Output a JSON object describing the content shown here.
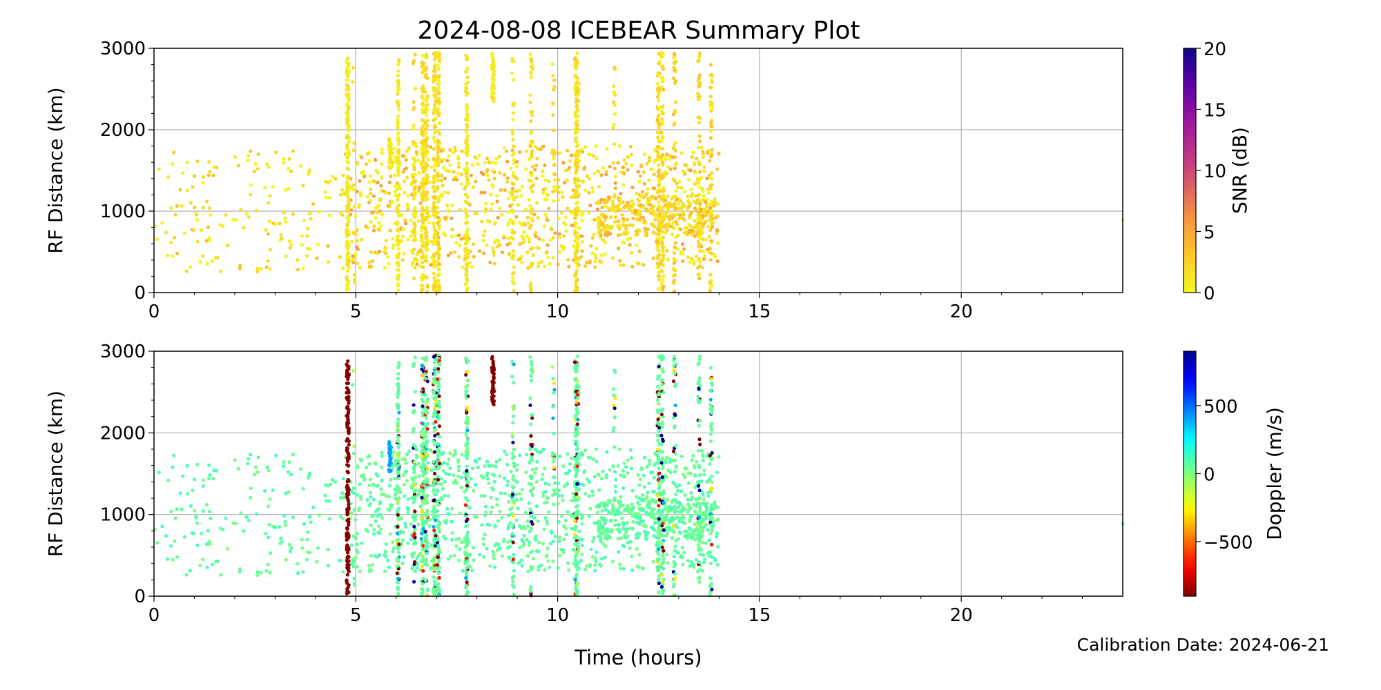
{
  "title": "2024-08-08 ICEBEAR Summary Plot",
  "calibration": "Calibration Date: 2024-06-21",
  "chart_data": [
    {
      "type": "scatter",
      "panel": "top",
      "ylabel": "RF Distance (km)",
      "xlabel": "Time (hours)",
      "xlim": [
        0,
        24
      ],
      "ylim": [
        0,
        3000
      ],
      "xticks": [
        0,
        5,
        10,
        15,
        20
      ],
      "yticks": [
        0,
        1000,
        2000,
        3000
      ],
      "grid": true,
      "color_by": "snr",
      "colorbar": {
        "label": "SNR (dB)",
        "range": [
          0,
          20
        ],
        "ticks": [
          0,
          5,
          10,
          15,
          20
        ],
        "colormap": "plasma_r"
      }
    },
    {
      "type": "scatter",
      "panel": "bottom",
      "ylabel": "RF Distance (km)",
      "xlabel": "Time (hours)",
      "xlim": [
        0,
        24
      ],
      "ylim": [
        0,
        3000
      ],
      "xticks": [
        0,
        5,
        10,
        15,
        20
      ],
      "yticks": [
        0,
        1000,
        2000,
        3000
      ],
      "grid": true,
      "color_by": "doppler",
      "colorbar": {
        "label": "Doppler (m/s)",
        "range": [
          -900,
          900
        ],
        "ticks": [
          -500,
          0,
          500
        ],
        "tick_labels": [
          "−500",
          "0",
          "500"
        ],
        "colormap": "jet_r"
      }
    }
  ],
  "data_description": {
    "units": {
      "time": "hours",
      "range": "km",
      "snr": "dB",
      "doppler": "m/s"
    },
    "background_clusters": [
      {
        "t": [
          0,
          4.8
        ],
        "r": [
          250,
          1750
        ],
        "count": 170,
        "snr": [
          0,
          4
        ],
        "doppler": [
          0,
          120
        ]
      },
      {
        "t": [
          4.8,
          14
        ],
        "r": [
          300,
          1800
        ],
        "count": 950,
        "snr": [
          0,
          6
        ],
        "doppler": [
          0,
          120
        ]
      },
      {
        "t": [
          11,
          14
        ],
        "r": [
          700,
          1200
        ],
        "count": 300,
        "snr": [
          1,
          5
        ],
        "doppler": [
          0,
          120
        ]
      }
    ],
    "streaks": [
      {
        "t": 4.8,
        "r": [
          0,
          2950
        ],
        "count": 160,
        "snr": [
          0,
          2
        ],
        "doppler": "-900"
      },
      {
        "t": 4.95,
        "r": [
          0,
          2900
        ],
        "count": 12,
        "snr": [
          0,
          2
        ],
        "doppler": "mixed"
      },
      {
        "t": 5.85,
        "r": [
          1500,
          1950
        ],
        "count": 25,
        "snr": [
          0,
          2
        ],
        "doppler": "400"
      },
      {
        "t": 6.05,
        "r": [
          0,
          2950
        ],
        "count": 110,
        "snr": [
          0,
          2
        ],
        "doppler": "mixed"
      },
      {
        "t": 6.45,
        "r": [
          0,
          2950
        ],
        "count": 50,
        "snr": [
          0,
          3
        ],
        "doppler": "mixed"
      },
      {
        "t": 6.65,
        "r": [
          0,
          2950
        ],
        "count": 120,
        "snr": [
          0,
          3
        ],
        "doppler": "mixed"
      },
      {
        "t": 6.75,
        "r": [
          0,
          2950
        ],
        "count": 110,
        "snr": [
          0,
          3
        ],
        "doppler": "mixed"
      },
      {
        "t": 6.95,
        "r": [
          0,
          2950
        ],
        "count": 120,
        "snr": [
          0,
          3
        ],
        "doppler": "mixed"
      },
      {
        "t": 7.05,
        "r": [
          0,
          2950
        ],
        "count": 110,
        "snr": [
          0,
          3
        ],
        "doppler": "mixed"
      },
      {
        "t": 7.75,
        "r": [
          0,
          2950
        ],
        "count": 120,
        "snr": [
          0,
          2
        ],
        "doppler": "mixed"
      },
      {
        "t": 8.4,
        "r": [
          2300,
          2950
        ],
        "count": 50,
        "snr": [
          0,
          2
        ],
        "doppler": "-900"
      },
      {
        "t": 8.9,
        "r": [
          0,
          2950
        ],
        "count": 45,
        "snr": [
          0,
          2
        ],
        "doppler": "mixed"
      },
      {
        "t": 9.35,
        "r": [
          0,
          2950
        ],
        "count": 60,
        "snr": [
          0,
          3
        ],
        "doppler": "mixed"
      },
      {
        "t": 9.9,
        "r": [
          1200,
          2900
        ],
        "count": 18,
        "snr": [
          0,
          3
        ],
        "doppler": "mixed"
      },
      {
        "t": 10.45,
        "r": [
          0,
          2950
        ],
        "count": 120,
        "snr": [
          0,
          3
        ],
        "doppler": "mixed"
      },
      {
        "t": 10.5,
        "r": [
          0,
          2950
        ],
        "count": 60,
        "snr": [
          0,
          3
        ],
        "doppler": "mixed"
      },
      {
        "t": 11.4,
        "r": [
          1700,
          2950
        ],
        "count": 12,
        "snr": [
          0,
          3
        ],
        "doppler": "mixed"
      },
      {
        "t": 12.5,
        "r": [
          0,
          2950
        ],
        "count": 90,
        "snr": [
          0,
          4
        ],
        "doppler": "mixed"
      },
      {
        "t": 12.6,
        "r": [
          0,
          2950
        ],
        "count": 70,
        "snr": [
          0,
          4
        ],
        "doppler": "mixed"
      },
      {
        "t": 12.9,
        "r": [
          0,
          2950
        ],
        "count": 50,
        "snr": [
          0,
          4
        ],
        "doppler": "mixed"
      },
      {
        "t": 13.5,
        "r": [
          0,
          2950
        ],
        "count": 60,
        "snr": [
          0,
          4
        ],
        "doppler": "mixed"
      },
      {
        "t": 13.8,
        "r": [
          0,
          2900
        ],
        "count": 60,
        "snr": [
          0,
          4
        ],
        "doppler": "mixed"
      }
    ],
    "isolated_points": [
      {
        "t": 24.0,
        "r": 890,
        "snr": 1,
        "doppler": 50
      }
    ]
  }
}
